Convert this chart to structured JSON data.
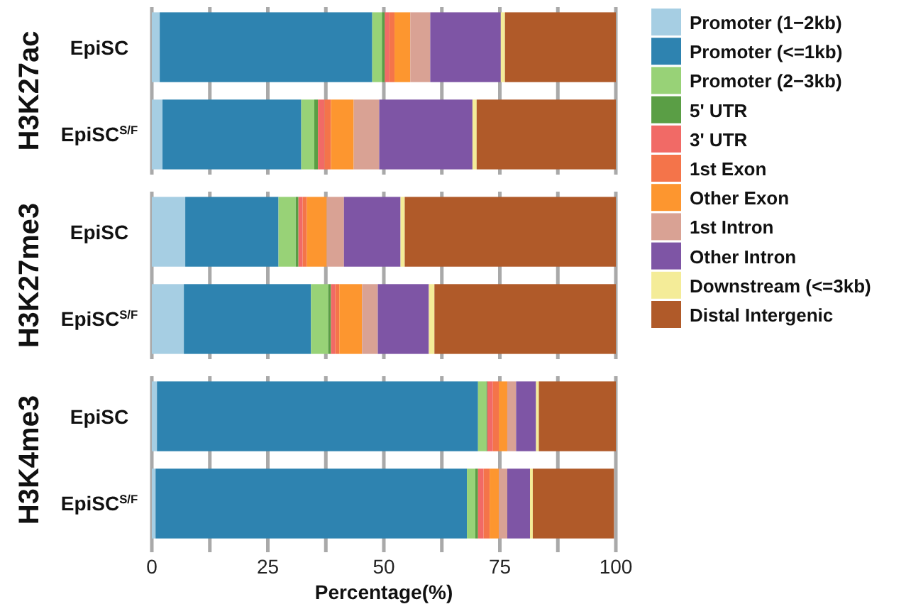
{
  "chart_data": [
    {
      "type": "bar",
      "orientation": "horizontal",
      "stacked": true,
      "ylabel": "H3K27ac",
      "categories": [
        "EpiSC",
        "EpiSC$^{S/F}$"
      ],
      "xlim": [
        0,
        100
      ],
      "xticks": [
        0,
        {
          "value": 12.5,
          "label": null
        },
        25,
        {
          "value": 37.5,
          "label": null
        },
        50,
        {
          "value": 62.5,
          "label": null
        },
        75,
        {
          "value": 87.5,
          "label": null
        },
        100
      ],
      "tick_labels": "y",
      "grid": "x",
      "legend": "right",
      "series": [
        {
          "name": "Promoter (1−2kb)",
          "color": "#a6cee3",
          "values": [
            1.7,
            2.3
          ]
        },
        {
          "name": "Promoter (<=1kb)",
          "color": "#2e83b0",
          "values": [
            45.8,
            29.9
          ]
        },
        {
          "name": "Promoter (2−3kb)",
          "color": "#98d277",
          "values": [
            2.1,
            2.8
          ]
        },
        {
          "name": "5' UTR",
          "color": "#5a9e45",
          "values": [
            0.6,
            0.8
          ]
        },
        {
          "name": "3' UTR",
          "color": "#f16a66",
          "values": [
            1.0,
            1.4
          ]
        },
        {
          "name": "1st Exon",
          "color": "#f4744a",
          "values": [
            1.1,
            1.4
          ]
        },
        {
          "name": "Other Exon",
          "color": "#fd962f",
          "values": [
            3.4,
            4.9
          ]
        },
        {
          "name": "1st Intron",
          "color": "#d9a294",
          "values": [
            4.3,
            5.5
          ]
        },
        {
          "name": "Other Intron",
          "color": "#7e55a5",
          "values": [
            15.2,
            20.1
          ]
        },
        {
          "name": "Downstream (<=3kb)",
          "color": "#f4ec98",
          "values": [
            0.9,
            0.9
          ]
        },
        {
          "name": "Distal Intergenic",
          "color": "#b05a29",
          "values": [
            23.9,
            30.0
          ]
        }
      ]
    },
    {
      "type": "bar",
      "orientation": "horizontal",
      "stacked": true,
      "ylabel": "H3K27me3",
      "categories": [
        "EpiSC",
        "EpiSC$^{S/F}$"
      ],
      "xlim": [
        0,
        100
      ],
      "xticks": [
        0,
        {
          "value": 12.5,
          "label": null
        },
        25,
        {
          "value": 37.5,
          "label": null
        },
        50,
        {
          "value": 62.5,
          "label": null
        },
        75,
        {
          "value": 87.5,
          "label": null
        },
        100
      ],
      "tick_labels": "y",
      "grid": "x",
      "series": [
        {
          "color": "#a6cee3",
          "values": [
            7.2,
            6.9
          ]
        },
        {
          "color": "#2e83b0",
          "values": [
            20.1,
            27.4
          ]
        },
        {
          "color": "#98d277",
          "values": [
            3.7,
            3.7
          ]
        },
        {
          "color": "#5a9e45",
          "values": [
            0.6,
            0.6
          ]
        },
        {
          "color": "#f16a66",
          "values": [
            0.9,
            0.9
          ]
        },
        {
          "color": "#f4744a",
          "values": [
            0.9,
            0.9
          ]
        },
        {
          "color": "#fd962f",
          "values": [
            4.3,
            4.9
          ]
        },
        {
          "color": "#d9a294",
          "values": [
            3.7,
            3.4
          ]
        },
        {
          "color": "#7e55a5",
          "values": [
            12.2,
            11.0
          ]
        },
        {
          "color": "#f4ec98",
          "values": [
            0.9,
            1.2
          ]
        },
        {
          "color": "#b05a29",
          "values": [
            45.5,
            39.1
          ]
        }
      ]
    },
    {
      "type": "bar",
      "orientation": "horizontal",
      "stacked": true,
      "ylabel": "H3K4me3",
      "xlabel": "Percentage(%)",
      "categories": [
        "EpiSC",
        "EpiSC$^{S/F}$"
      ],
      "xlim": [
        0,
        100
      ],
      "xticks": [
        0,
        {
          "value": 12.5,
          "label": null
        },
        25,
        {
          "value": 37.5,
          "label": null
        },
        50,
        {
          "value": 62.5,
          "label": null
        },
        75,
        {
          "value": 87.5,
          "label": null
        },
        100
      ],
      "grid": "x",
      "series": [
        {
          "color": "#a6cee3",
          "values": [
            1.1,
            0.8
          ]
        },
        {
          "color": "#2e83b0",
          "values": [
            69.2,
            67.1
          ]
        },
        {
          "color": "#98d277",
          "values": [
            1.8,
            1.8
          ]
        },
        {
          "color": "#5a9e45",
          "values": [
            0.2,
            0.6
          ]
        },
        {
          "color": "#f16a66",
          "values": [
            1.2,
            1.2
          ]
        },
        {
          "color": "#f4744a",
          "values": [
            1.3,
            1.3
          ]
        },
        {
          "color": "#fd962f",
          "values": [
            1.8,
            2.0
          ]
        },
        {
          "color": "#d9a294",
          "values": [
            1.9,
            1.8
          ]
        },
        {
          "color": "#7e55a5",
          "values": [
            4.3,
            4.9
          ]
        },
        {
          "color": "#f4ec98",
          "values": [
            0.6,
            0.6
          ]
        },
        {
          "color": "#b05a29",
          "values": [
            16.6,
            17.5
          ]
        }
      ]
    }
  ]
}
